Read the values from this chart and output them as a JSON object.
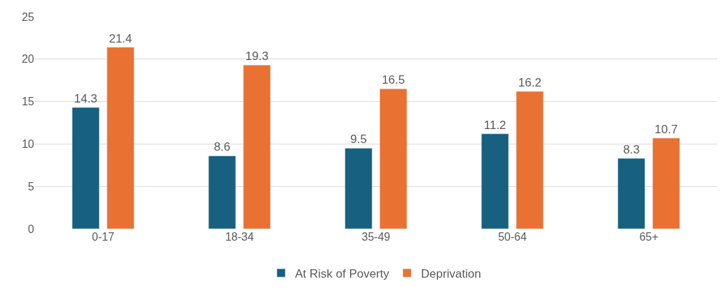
{
  "chart_data": {
    "type": "bar",
    "categories": [
      "0-17",
      "18-34",
      "35-49",
      "50-64",
      "65+"
    ],
    "series": [
      {
        "name": "At Risk of Poverty",
        "color": "#17607f",
        "values": [
          14.3,
          8.6,
          9.5,
          11.2,
          8.3
        ]
      },
      {
        "name": "Deprivation",
        "color": "#e97132",
        "values": [
          21.4,
          19.3,
          16.5,
          16.2,
          10.7
        ]
      }
    ],
    "ylim": [
      0,
      25
    ],
    "yticks": [
      0,
      5,
      10,
      15,
      20,
      25
    ],
    "grid": "y",
    "legend": "bottom",
    "data_labels": true
  }
}
